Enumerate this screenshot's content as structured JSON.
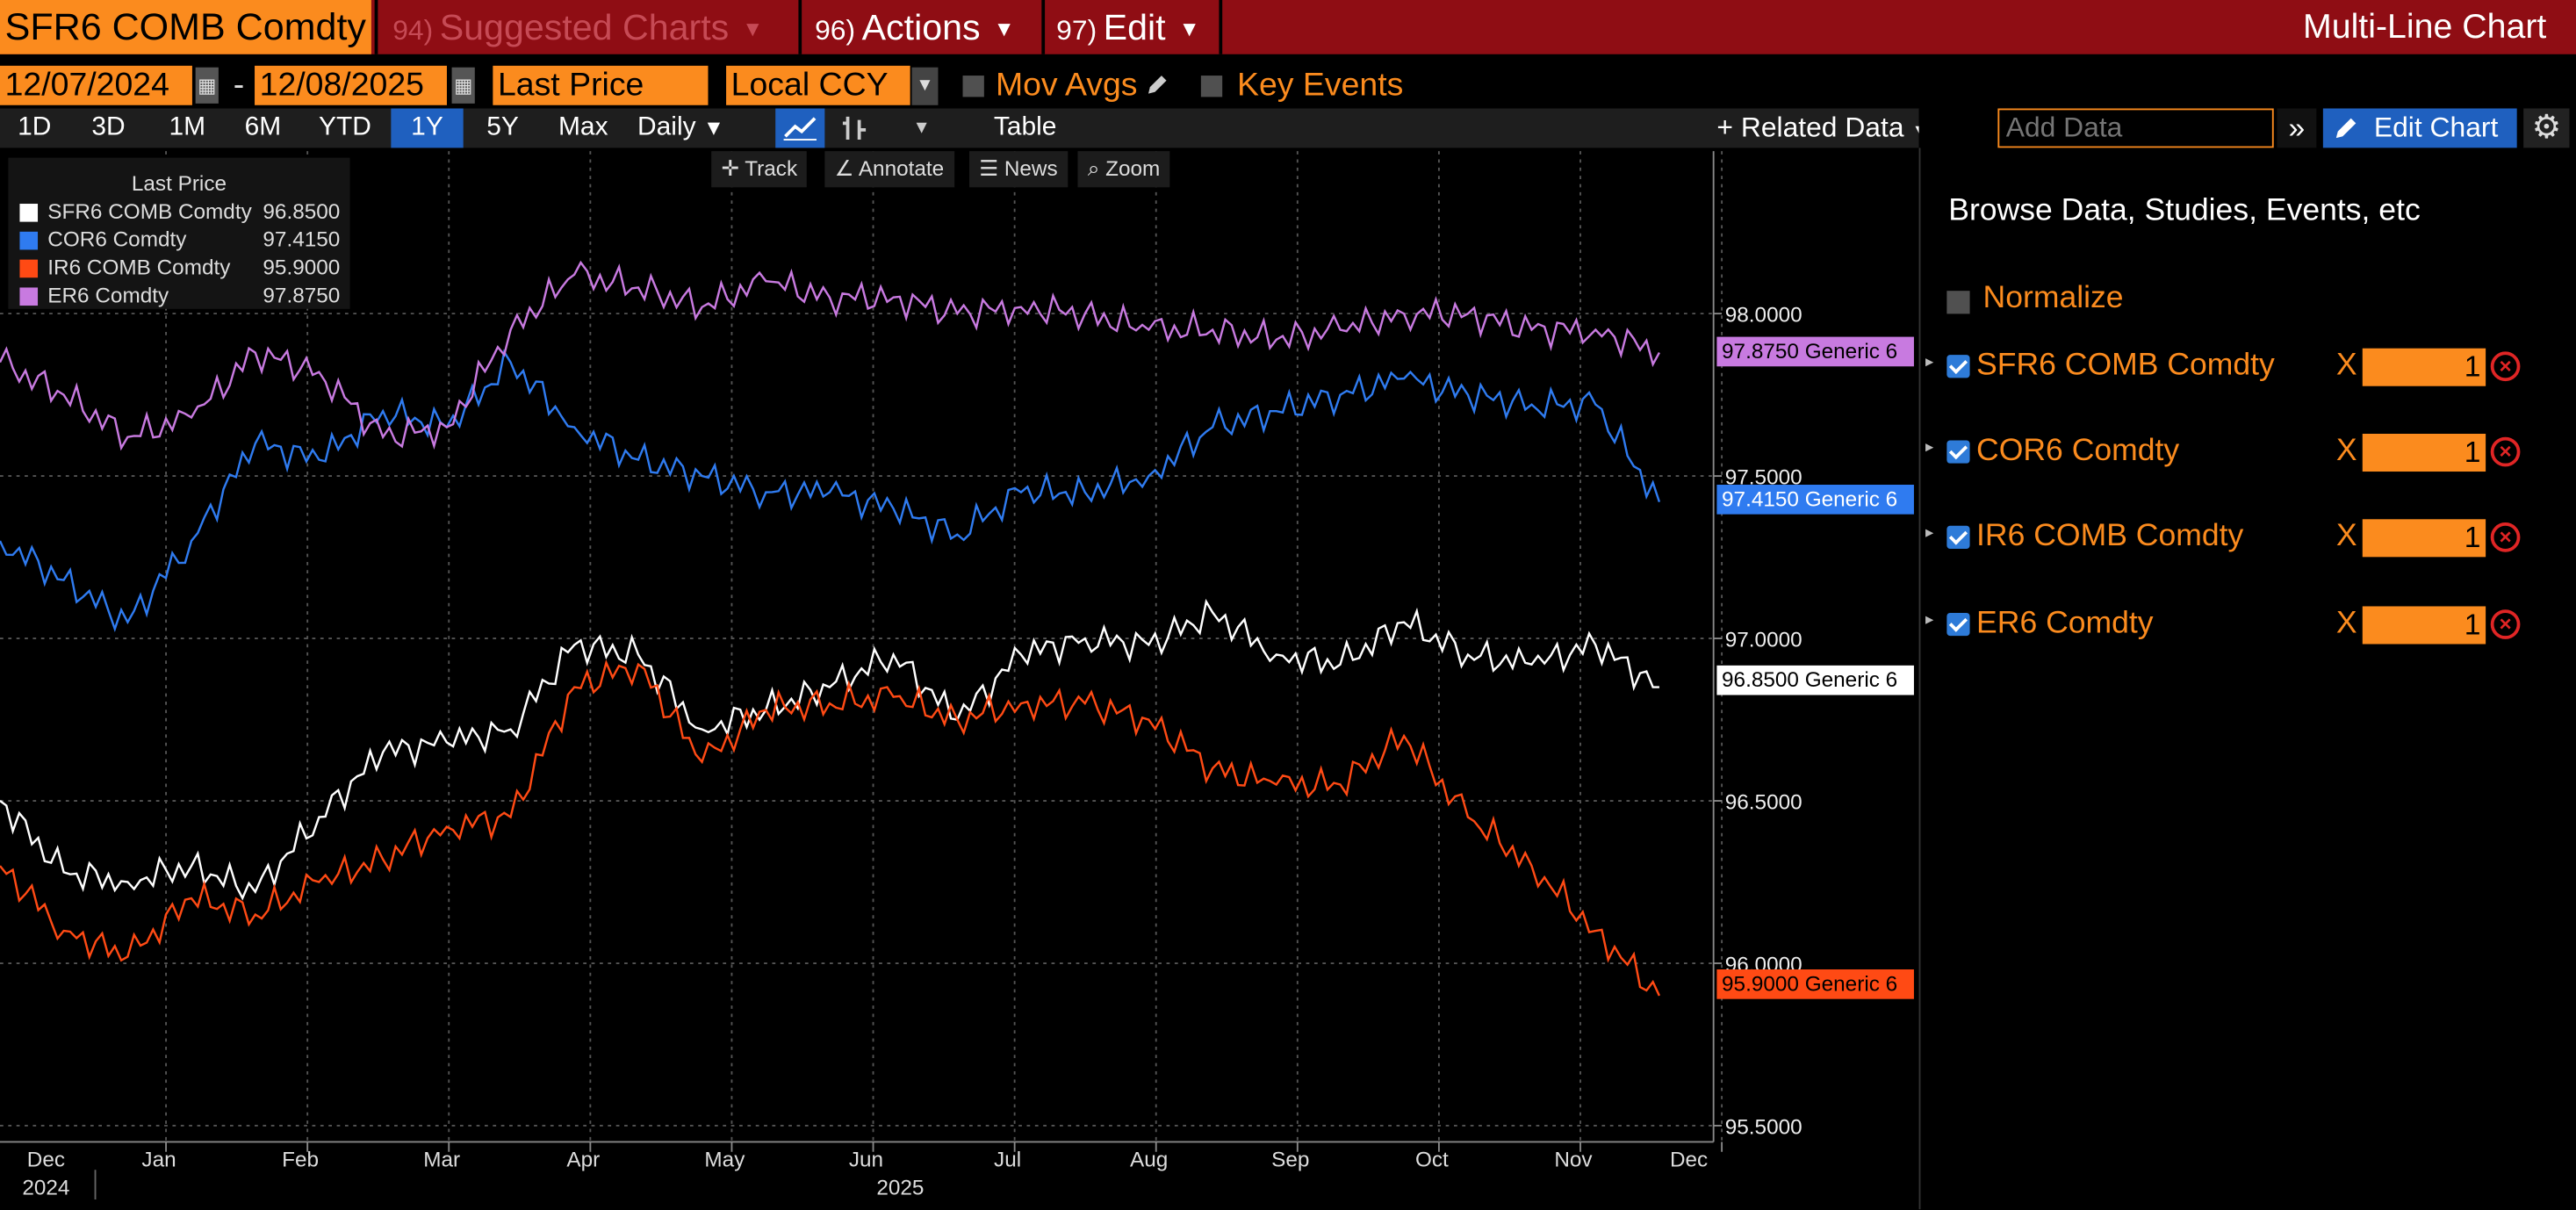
{
  "titlebar": {
    "security": "SFR6 COMB Comdty",
    "menu_suggested_num": "94)",
    "menu_suggested": "Suggested Charts",
    "menu_actions_num": "96)",
    "menu_actions": "Actions",
    "menu_edit_num": "97)",
    "menu_edit": "Edit",
    "window_title": "Multi-Line Chart"
  },
  "controls": {
    "start_date": "12/07/2024",
    "date_separator": "-",
    "end_date": "12/08/2025",
    "field": "Last Price",
    "currency": "Local CCY",
    "mov_avgs": "Mov Avgs",
    "key_events": "Key Events"
  },
  "periods": [
    "1D",
    "3D",
    "1M",
    "6M",
    "YTD",
    "1Y",
    "5Y",
    "Max"
  ],
  "active_period": "1Y",
  "frequency": "Daily",
  "table_label": "Table",
  "related_data": "Related Data",
  "add_data_placeholder": "Add Data",
  "edit_chart": "Edit Chart",
  "tools": {
    "track": "Track",
    "annotate": "Annotate",
    "news": "News",
    "zoom": "Zoom"
  },
  "legend": {
    "header": "Last Price",
    "items": [
      {
        "name": "SFR6 COMB Comdty",
        "value": "96.8500"
      },
      {
        "name": "COR6 Comdty",
        "value": "97.4150"
      },
      {
        "name": "IR6 COMB Comdty",
        "value": "95.9000"
      },
      {
        "name": "ER6 Comdty",
        "value": "97.8750"
      }
    ]
  },
  "tags": [
    {
      "text": "97.8750 Generic 6"
    },
    {
      "text": "97.4150 Generic 6"
    },
    {
      "text": "96.8500 Generic 6"
    },
    {
      "text": "95.9000 Generic 6"
    }
  ],
  "right_panel": {
    "heading": "Browse Data, Studies, Events, etc",
    "normalize": "Normalize",
    "multiplier_symbol": "X",
    "series": [
      {
        "name": "SFR6 COMB Comdty",
        "multiplier": "1"
      },
      {
        "name": "COR6 Comdty",
        "multiplier": "1"
      },
      {
        "name": "IR6 COMB Comdty",
        "multiplier": "1"
      },
      {
        "name": "ER6 Comdty",
        "multiplier": "1"
      }
    ]
  },
  "colors": {
    "sfr6": "#ffffff",
    "cor6": "#2f7bf0",
    "ir6": "#ff4a14",
    "er6": "#c87ae0",
    "orange": "#fb8b1e",
    "titlebar": "#8f0d14"
  },
  "chart_data": {
    "type": "line",
    "ylim": [
      95.45,
      98.5
    ],
    "y_ticks": [
      "95.5000",
      "96.0000",
      "96.5000",
      "97.0000",
      "97.5000",
      "98.0000"
    ],
    "x_ticks": [
      "Dec",
      "Jan",
      "Feb",
      "Mar",
      "Apr",
      "May",
      "Jun",
      "Jul",
      "Aug",
      "Sep",
      "Oct",
      "Nov",
      "Dec"
    ],
    "x_years": [
      "2024",
      "2025"
    ],
    "x": [
      "2024-12-07",
      "2024-12-21",
      "2025-01-04",
      "2025-01-18",
      "2025-02-01",
      "2025-02-15",
      "2025-03-01",
      "2025-03-15",
      "2025-03-29",
      "2025-04-12",
      "2025-04-26",
      "2025-05-10",
      "2025-05-24",
      "2025-06-07",
      "2025-06-21",
      "2025-07-05",
      "2025-07-19",
      "2025-08-02",
      "2025-08-16",
      "2025-08-30",
      "2025-09-13",
      "2025-09-27",
      "2025-10-11",
      "2025-10-25",
      "2025-11-08",
      "2025-11-22",
      "2025-12-06"
    ],
    "series": [
      {
        "name": "SFR6 COMB Comdty",
        "values": [
          96.5,
          96.28,
          96.25,
          96.3,
          96.22,
          96.45,
          96.65,
          96.68,
          96.72,
          96.98,
          96.95,
          96.72,
          96.78,
          96.85,
          96.95,
          96.75,
          96.95,
          97.0,
          96.98,
          97.08,
          96.95,
          96.92,
          97.05,
          96.95,
          96.92,
          96.98,
          96.85
        ]
      },
      {
        "name": "COR6 Comdty",
        "values": [
          97.3,
          97.18,
          97.05,
          97.3,
          97.6,
          97.55,
          97.7,
          97.65,
          97.85,
          97.65,
          97.55,
          97.5,
          97.45,
          97.45,
          97.4,
          97.32,
          97.45,
          97.45,
          97.5,
          97.65,
          97.7,
          97.75,
          97.8,
          97.75,
          97.72,
          97.72,
          97.42
        ]
      },
      {
        "name": "IR6 COMB Comdty",
        "values": [
          96.3,
          96.1,
          96.02,
          96.2,
          96.15,
          96.25,
          96.32,
          96.42,
          96.45,
          96.85,
          96.92,
          96.62,
          96.78,
          96.8,
          96.82,
          96.75,
          96.8,
          96.8,
          96.75,
          96.6,
          96.55,
          96.55,
          96.7,
          96.45,
          96.3,
          96.1,
          95.9
        ]
      },
      {
        "name": "ER6 Comdty",
        "values": [
          97.85,
          97.75,
          97.62,
          97.68,
          97.88,
          97.82,
          97.62,
          97.65,
          97.95,
          98.12,
          98.08,
          98.02,
          98.1,
          98.05,
          98.05,
          98.0,
          98.02,
          98.0,
          97.95,
          97.95,
          97.92,
          97.95,
          98.0,
          98.0,
          97.95,
          97.95,
          97.88
        ]
      }
    ]
  }
}
